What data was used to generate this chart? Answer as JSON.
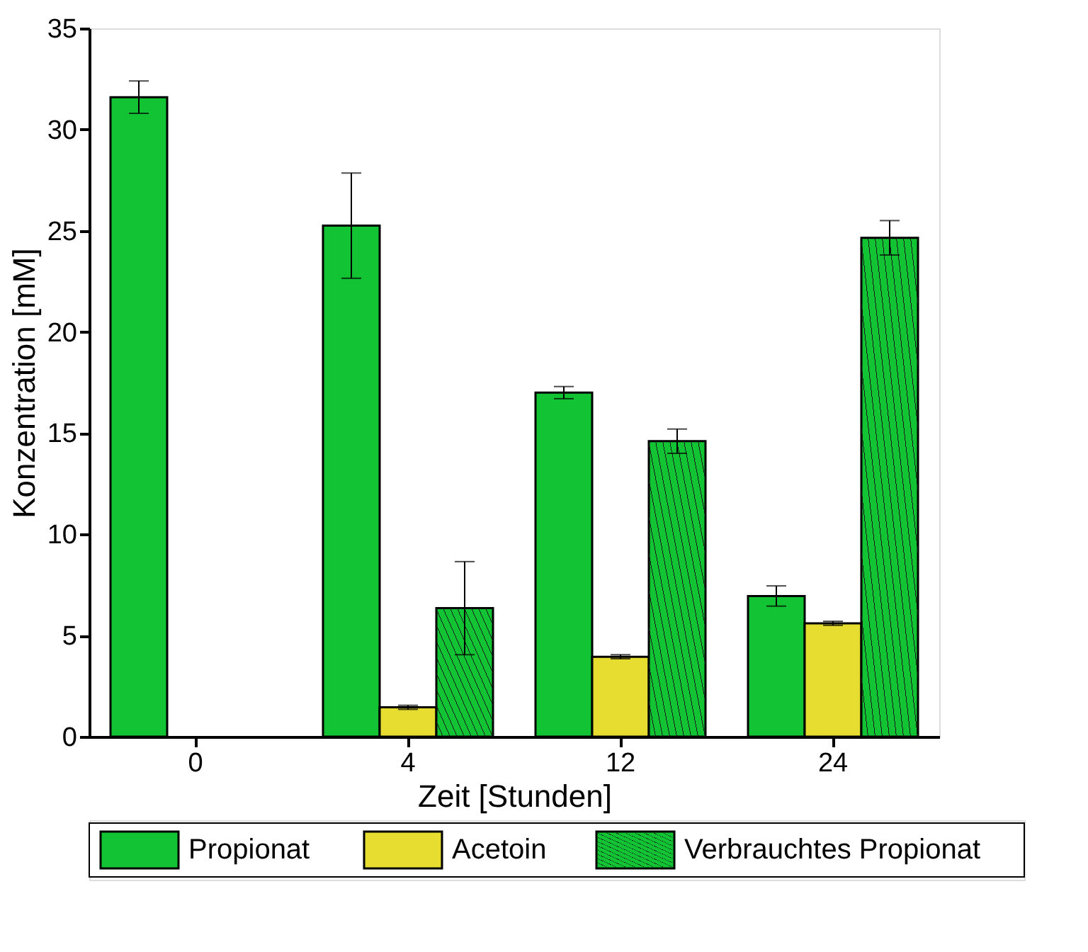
{
  "chart_data": {
    "type": "bar",
    "xlabel": "Zeit [Stunden]",
    "ylabel": "Konzentration [mM]",
    "categories": [
      "0",
      "4",
      "12",
      "24"
    ],
    "series": [
      {
        "name": "Propionat",
        "color": "#12c434",
        "values": [
          31.6,
          25.25,
          17.0,
          6.95
        ],
        "errors": [
          0.8,
          2.6,
          0.3,
          0.5
        ]
      },
      {
        "name": "Acetoin",
        "color": "#e6dd30",
        "values": [
          null,
          1.45,
          3.95,
          5.6
        ],
        "errors": [
          null,
          0.1,
          0.1,
          0.1
        ]
      },
      {
        "name": "Verbrauchtes Propionat",
        "color": "#12c434",
        "values": [
          null,
          6.35,
          14.6,
          24.65
        ],
        "errors": [
          null,
          2.3,
          0.6,
          0.85
        ]
      }
    ],
    "ylim": [
      0,
      35
    ],
    "yticks": [
      0,
      5,
      10,
      15,
      20,
      25,
      30,
      35
    ],
    "grid": false,
    "legend": "bottom"
  }
}
